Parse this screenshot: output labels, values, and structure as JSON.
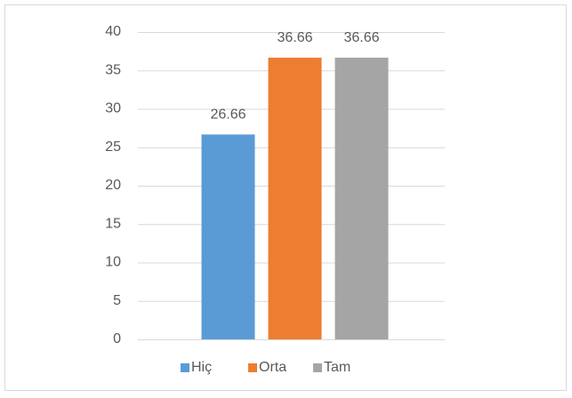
{
  "chart_data": {
    "type": "bar",
    "categories": [
      null
    ],
    "series": [
      {
        "name": "Hiç",
        "color": "#5b9bd5",
        "values": [
          26.66
        ]
      },
      {
        "name": "Orta",
        "color": "#ed7d31",
        "values": [
          36.66
        ]
      },
      {
        "name": "Tam",
        "color": "#a5a5a5",
        "values": [
          36.66
        ]
      }
    ],
    "ylim": [
      0,
      40
    ],
    "yticks": [
      0,
      5,
      10,
      15,
      20,
      25,
      30,
      35,
      40
    ],
    "grid": true,
    "legend": "bottom"
  }
}
